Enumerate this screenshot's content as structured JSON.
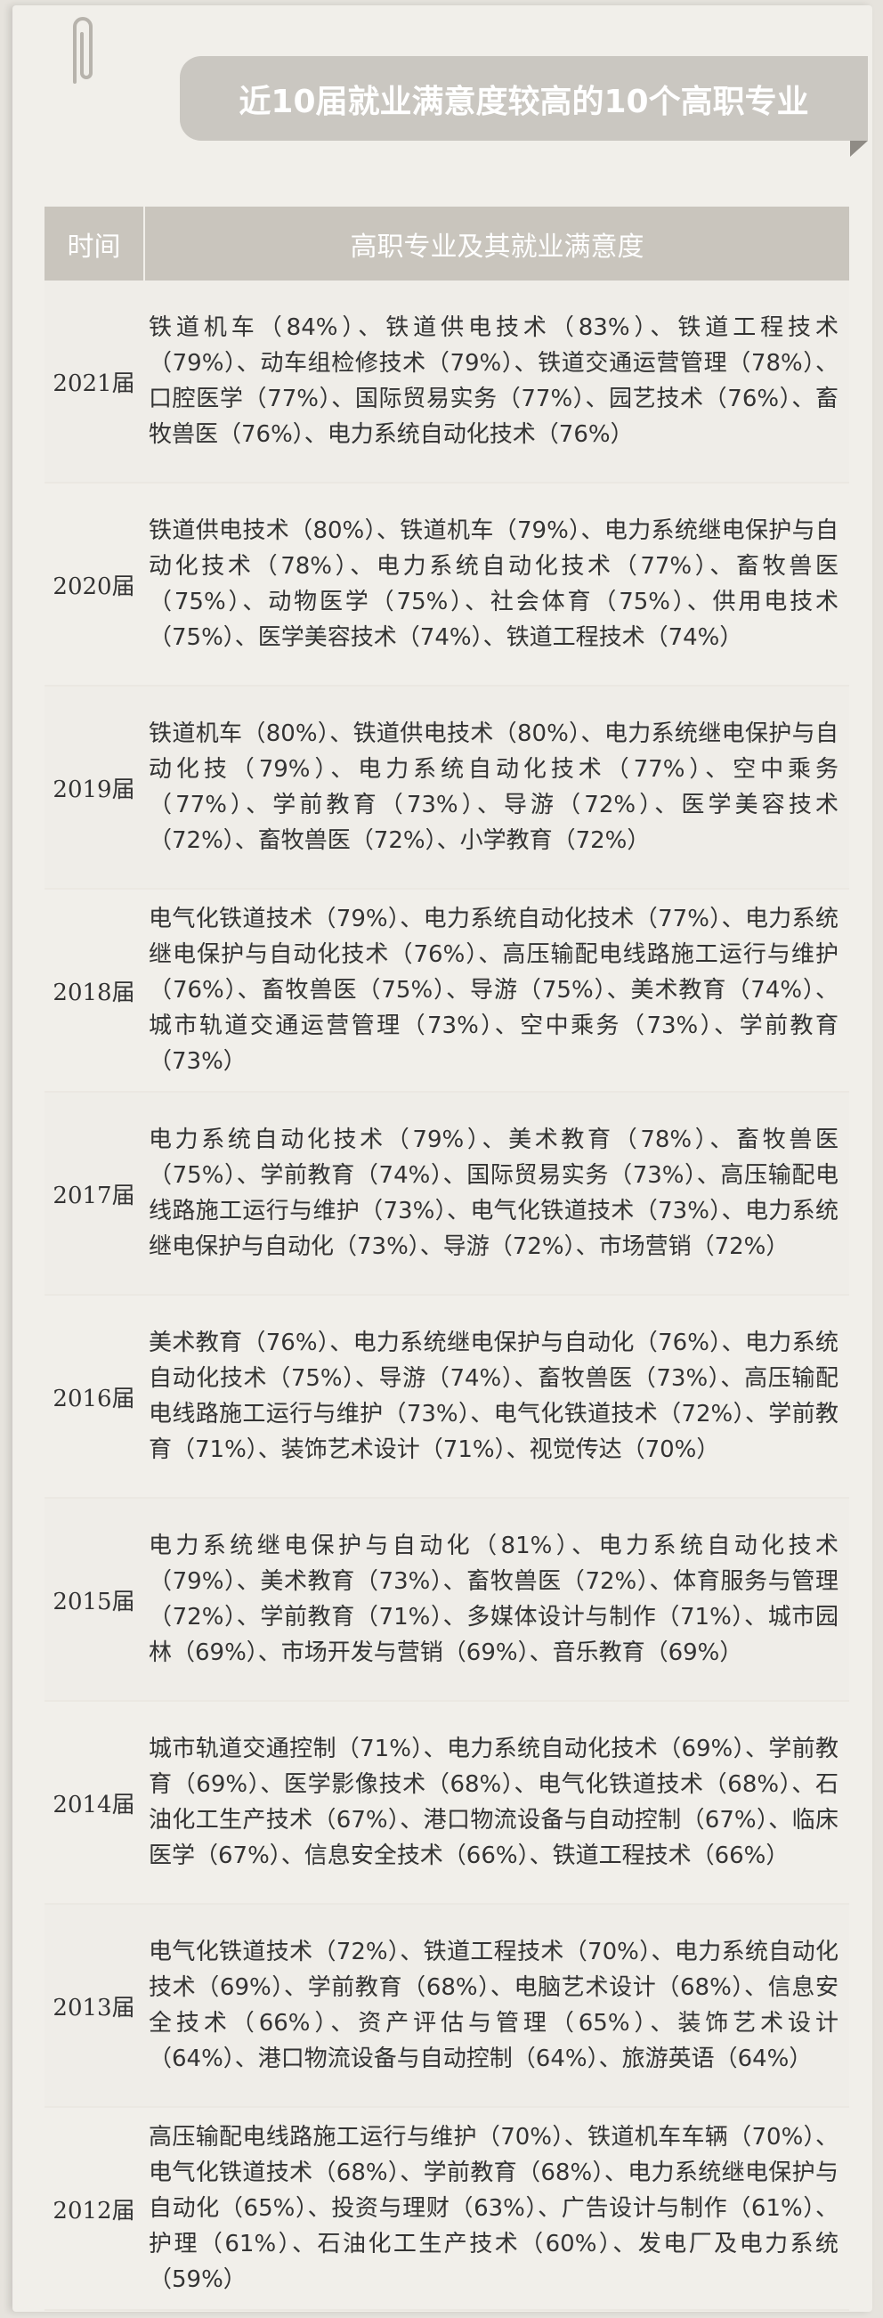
{
  "title": "近10届就业满意度较高的10个高职专业",
  "table": {
    "headers": [
      "时间",
      "高职专业及其就业满意度"
    ],
    "rows": [
      [
        "2021届",
        "铁道机车（84%）、铁道供电技术（83%）、铁道工程技术（79%）、动车组检修技术（79%）、铁道交通运营管理（78%）、口腔医学（77%）、国际贸易实务（77%）、园艺技术（76%）、畜牧兽医（76%）、电力系统自动化技术（76%）"
      ],
      [
        "2020届",
        "铁道供电技术（80%）、铁道机车（79%）、电力系统继电保护与自动化技术（78%）、电力系统自动化技术（77%）、畜牧兽医（75%）、动物医学（75%）、社会体育（75%）、供用电技术（75%）、医学美容技术（74%）、铁道工程技术（74%）"
      ],
      [
        "2019届",
        "铁道机车（80%）、铁道供电技术（80%）、电力系统继电保护与自动化技（79%）、电力系统自动化技术（77%）、空中乘务（77%）、学前教育（73%）、导游（72%）、医学美容技术（72%）、畜牧兽医（72%）、小学教育（72%）"
      ],
      [
        "2018届",
        "电气化铁道技术（79%）、电力系统自动化技术（77%）、电力系统继电保护与自动化技术（76%）、高压输配电线路施工运行与维护（76%）、畜牧兽医（75%）、导游（75%）、美术教育（74%）、城市轨道交通运营管理（73%）、空中乘务（73%）、学前教育（73%）"
      ],
      [
        "2017届",
        "电力系统自动化技术（79%）、美术教育（78%）、畜牧兽医（75%）、学前教育（74%）、国际贸易实务（73%）、高压输配电线路施工运行与维护（73%）、电气化铁道技术（73%）、电力系统继电保护与自动化（73%）、导游（72%）、市场营销（72%）"
      ],
      [
        "2016届",
        "美术教育（76%）、电力系统继电保护与自动化（76%）、电力系统自动化技术（75%）、导游（74%）、畜牧兽医（73%）、高压输配电线路施工运行与维护（73%）、电气化铁道技术（72%）、学前教育（71%）、装饰艺术设计（71%）、视觉传达（70%）"
      ],
      [
        "2015届",
        "电力系统继电保护与自动化（81%）、电力系统自动化技术（79%）、美术教育（73%）、畜牧兽医（72%）、体育服务与管理（72%）、学前教育（71%）、多媒体设计与制作（71%）、城市园林（69%）、市场开发与营销（69%）、音乐教育（69%）"
      ],
      [
        "2014届",
        "城市轨道交通控制（71%）、电力系统自动化技术（69%）、学前教育（69%）、医学影像技术（68%）、电气化铁道技术（68%）、石油化工生产技术（67%）、港口物流设备与自动控制（67%）、临床医学（67%）、信息安全技术（66%）、铁道工程技术（66%）"
      ],
      [
        "2013届",
        "电气化铁道技术（72%）、铁道工程技术（70%）、电力系统自动化技术（69%）、学前教育（68%）、电脑艺术设计（68%）、信息安全技术（66%）、资产评估与管理（65%）、装饰艺术设计（64%）、港口物流设备与自动控制（64%）、旅游英语（64%）"
      ],
      [
        "2012届",
        "高压输配电线路施工运行与维护（70%）、铁道机车车辆（70%）、电气化铁道技术（68%）、学前教育（68%）、电力系统继电保护与自动化（65%）、投资与理财（63%）、广告设计与制作（61%）、护理（61%）、石油化工生产技术（60%）、发电厂及电力系统（59%）"
      ]
    ]
  }
}
